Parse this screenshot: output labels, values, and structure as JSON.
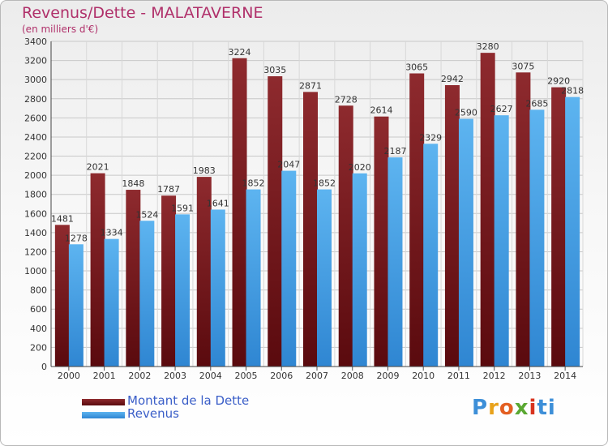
{
  "header": {
    "title": "Revenus/Dette - MALATAVERNE",
    "subtitle": "(en milliers d'€)"
  },
  "legend": {
    "debt_label": "Montant de la Dette",
    "revenue_label": "Revenus"
  },
  "logo": {
    "letters": [
      "P",
      "r",
      "o",
      "x",
      "i",
      "ti"
    ],
    "text": "Proxiti"
  },
  "colors": {
    "title": "#b0306a",
    "debt": "#7a1a1e",
    "revenue": "#4aa3e8",
    "legend_text": "#3a5ec8"
  },
  "chart_data": {
    "type": "bar",
    "title": "Revenus/Dette - MALATAVERNE",
    "subtitle": "(en milliers d'€)",
    "categories": [
      "2000",
      "2001",
      "2002",
      "2003",
      "2004",
      "2005",
      "2006",
      "2007",
      "2008",
      "2009",
      "2010",
      "2011",
      "2012",
      "2013",
      "2014"
    ],
    "series": [
      {
        "name": "Montant de la Dette",
        "values": [
          1481,
          2021,
          1848,
          1787,
          1983,
          3224,
          3035,
          2871,
          2728,
          2614,
          3065,
          2942,
          3280,
          3075,
          2920
        ]
      },
      {
        "name": "Revenus",
        "values": [
          1278,
          1334,
          1524,
          1591,
          1641,
          1852,
          2047,
          1852,
          2020,
          2187,
          2329,
          2590,
          2627,
          2685,
          2818
        ]
      }
    ],
    "ylim": [
      0,
      3400
    ],
    "yticks": [
      0,
      200,
      400,
      600,
      800,
      1000,
      1200,
      1400,
      1600,
      1800,
      2000,
      2200,
      2400,
      2600,
      2800,
      3000,
      3200,
      3400
    ],
    "grid": true,
    "data_labels": true,
    "legend_position": "bottom-left"
  }
}
